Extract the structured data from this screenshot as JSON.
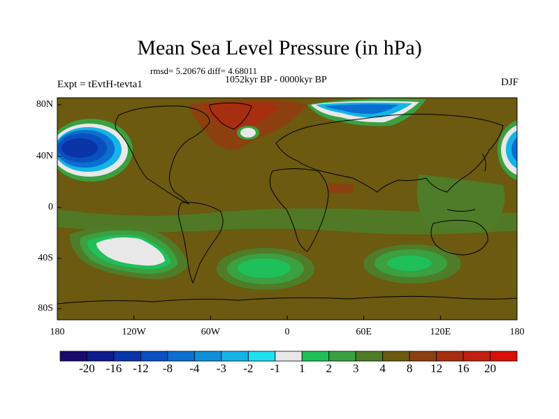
{
  "title": "Mean Sea Level Pressure (in hPa)",
  "stats": "rmsd= 5.20676 diff= 4.68011",
  "period": "1052kyr BP - 0000kyr BP",
  "experiment": "Expt = tEvtH-tevta1",
  "season": "DJF",
  "lat_ticks": [
    "80N",
    "40N",
    "0",
    "40S",
    "80S"
  ],
  "lon_ticks": [
    "180",
    "120W",
    "60W",
    "0",
    "60E",
    "120E",
    "180"
  ],
  "colorbar": {
    "labels": [
      "-20",
      "-16",
      "-12",
      "-8",
      "-4",
      "-3",
      "-2",
      "-1",
      "1",
      "2",
      "3",
      "4",
      "8",
      "12",
      "16",
      "20"
    ],
    "colors": [
      "#1a0a6e",
      "#0c1c8c",
      "#0a35a8",
      "#0a4fc0",
      "#0a6fd0",
      "#0d90d8",
      "#14b4e8",
      "#20e0f0",
      "#e8e8e8",
      "#1fbf5a",
      "#3aa040",
      "#4f7c28",
      "#6b5a10",
      "#8c4010",
      "#a82e10",
      "#c02010",
      "#d81008"
    ]
  },
  "colors": {
    "background_field": "#6b5a10",
    "land_outline": "#000000"
  }
}
